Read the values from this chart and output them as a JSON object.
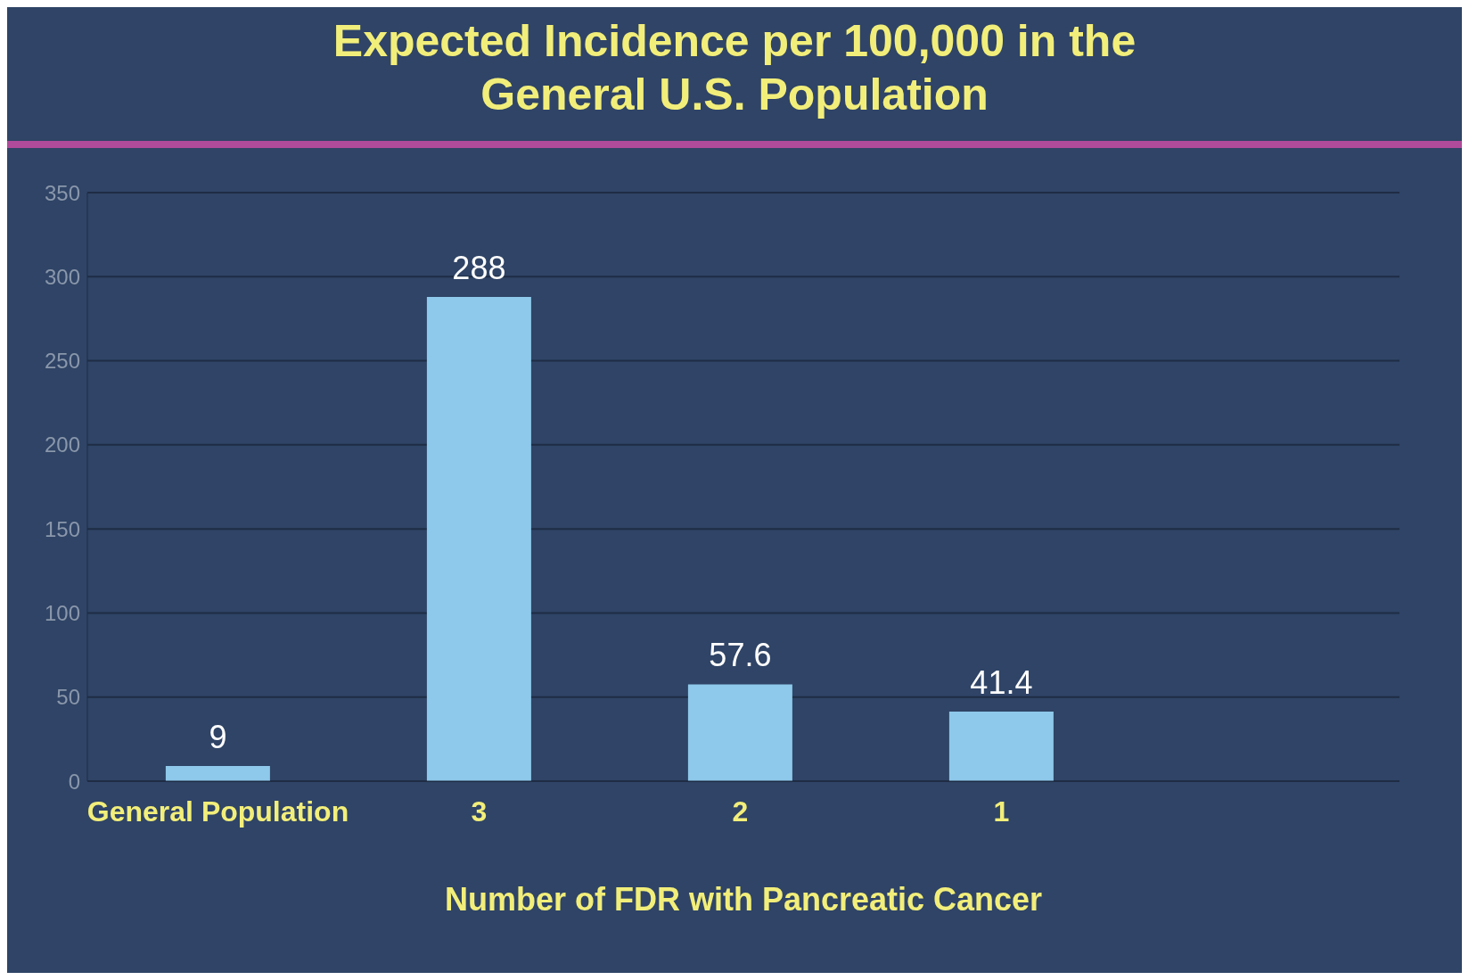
{
  "chart_data": {
    "type": "bar",
    "title": "Expected Incidence per 100,000 in the General U.S. Population",
    "xlabel": "Number of FDR with Pancreatic Cancer",
    "categories": [
      "General Population",
      "3",
      "2",
      "1"
    ],
    "values": [
      9,
      288,
      57.6,
      41.4
    ],
    "color": "#8ec8ea",
    "ylim": [
      0,
      350
    ],
    "yticks": [
      0,
      50,
      100,
      150,
      200,
      250,
      300,
      350
    ],
    "grid": "y",
    "data_labels": true
  }
}
